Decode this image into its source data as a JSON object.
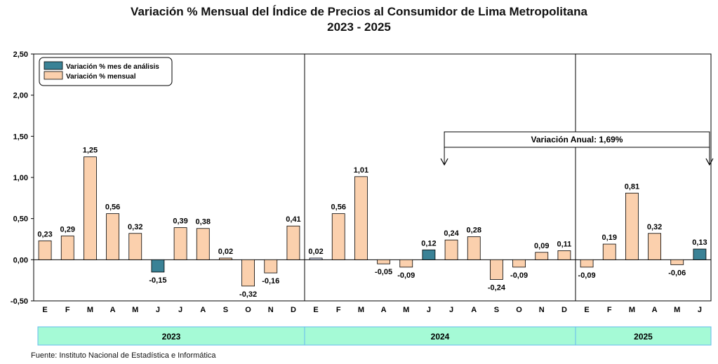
{
  "chart_data": {
    "type": "bar",
    "title": "Variación % Mensual del Índice de Precios al Consumidor de Lima Metropolitana",
    "subtitle": "2023 - 2025",
    "ylim": [
      -0.5,
      2.5
    ],
    "yticks": [
      "2,50",
      "2,00",
      "1,50",
      "1,00",
      "0,50",
      "0,00",
      "-0,50"
    ],
    "ytick_values": [
      2.5,
      2.0,
      1.5,
      1.0,
      0.5,
      0.0,
      -0.5
    ],
    "legend": {
      "placement": "top-left",
      "items": [
        {
          "label": "Variación % mes de análisis",
          "color": "#3a8296"
        },
        {
          "label": "Variación % mensual",
          "color": "#fbd0ad"
        }
      ]
    },
    "categories": [
      "E",
      "F",
      "M",
      "A",
      "M",
      "J",
      "J",
      "A",
      "S",
      "O",
      "N",
      "D",
      "E",
      "F",
      "M",
      "A",
      "M",
      "J",
      "J",
      "A",
      "S",
      "O",
      "N",
      "D",
      "E",
      "F",
      "M",
      "A",
      "M",
      "J"
    ],
    "values": [
      0.23,
      0.29,
      1.25,
      0.56,
      0.32,
      -0.15,
      0.39,
      0.38,
      0.02,
      -0.32,
      -0.16,
      0.41,
      0.02,
      0.56,
      1.01,
      -0.05,
      -0.09,
      0.12,
      0.24,
      0.28,
      -0.24,
      -0.09,
      0.09,
      0.11,
      -0.09,
      0.19,
      0.81,
      0.32,
      -0.06,
      0.13
    ],
    "labels": [
      "0,23",
      "0,29",
      "1,25",
      "0,56",
      "0,32",
      "-0,15",
      "0,39",
      "0,38",
      "0,02",
      "-0,32",
      "-0,16",
      "0,41",
      "0,02",
      "0,56",
      "1,01",
      "-0,05",
      "-0,09",
      "0,12",
      "0,24",
      "0,28",
      "-0,24",
      "-0,09",
      "0,09",
      "0,11",
      "-0,09",
      "0,19",
      "0,81",
      "0,32",
      "-0,06",
      "0,13"
    ],
    "bar_kind": [
      "m",
      "m",
      "m",
      "m",
      "m",
      "a",
      "m",
      "m",
      "m",
      "m",
      "m",
      "m",
      "p",
      "m",
      "m",
      "m",
      "m",
      "a",
      "m",
      "m",
      "m",
      "m",
      "m",
      "m",
      "m",
      "m",
      "m",
      "m",
      "m",
      "a"
    ],
    "colors": {
      "mensual": "#fbd0ad",
      "analisis": "#3a8296",
      "pale": "#d6dcef",
      "year_band": "#a5fad6",
      "year_border": "#66bbee"
    },
    "years": [
      {
        "label": "2023",
        "months": 12
      },
      {
        "label": "2024",
        "months": 12
      },
      {
        "label": "2025",
        "months": 6
      }
    ],
    "annotation": {
      "text": "Variación Anual:  1,69%",
      "from_index": 18,
      "to_index": 29
    }
  },
  "footer": {
    "source": "Fuente: Instituto  Nacional de Estadística  e Informática"
  }
}
